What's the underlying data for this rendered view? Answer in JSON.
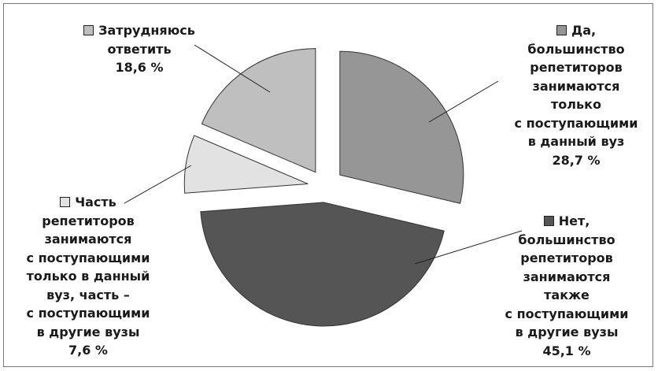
{
  "chart_data": {
    "type": "pie",
    "exploded": true,
    "slices": [
      {
        "lines": [
          "Да,",
          "большинство",
          "репетиторов",
          "занимаются",
          "только",
          "с поступающими",
          "в данный вуз",
          "28,7 %"
        ],
        "value": 28.7,
        "color": "#969696"
      },
      {
        "lines": [
          "Нет,",
          "большинство",
          "репетиторов",
          "занимаются",
          "также",
          "с поступающими",
          "в другие вузы",
          "45,1 %"
        ],
        "value": 45.1,
        "color": "#555555"
      },
      {
        "lines": [
          "Часть",
          "репетиторов",
          "занимаются",
          "с поступающими",
          "только в данный",
          "вуз, часть –",
          "с поступающими",
          "в другие вузы",
          "7,6 %"
        ],
        "value": 7.6,
        "color": "#e2e2e2"
      },
      {
        "lines": [
          "Затрудняюсь",
          "ответить",
          "18,6 %"
        ],
        "value": 18.6,
        "color": "#bfbfbf"
      }
    ]
  }
}
